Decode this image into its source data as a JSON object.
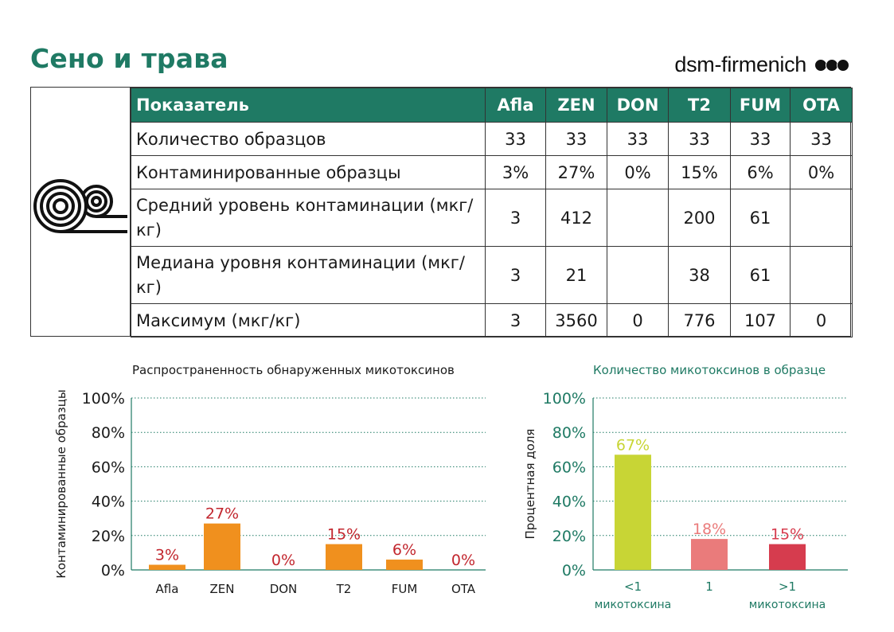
{
  "page": {
    "title": "Сено и трава",
    "brand": "dsm-firmenich",
    "icon": "hay-bale-icon"
  },
  "table": {
    "headers": [
      "Показатель",
      "Afla",
      "ZEN",
      "DON",
      "T2",
      "FUM",
      "OTA"
    ],
    "rows": [
      {
        "label": "Количество образцов",
        "values": [
          "33",
          "33",
          "33",
          "33",
          "33",
          "33"
        ]
      },
      {
        "label": "Контаминированные образцы",
        "values": [
          "3%",
          "27%",
          "0%",
          "15%",
          "6%",
          "0%"
        ]
      },
      {
        "label": "Средний уровень контаминации (мкг/кг)",
        "values": [
          "3",
          "412",
          "",
          "200",
          "61",
          ""
        ]
      },
      {
        "label": "Медиана уровня контаминации (мкг/кг)",
        "values": [
          "3",
          "21",
          "",
          "38",
          "61",
          ""
        ]
      },
      {
        "label": "Максимум (мкг/кг)",
        "values": [
          "3",
          "3560",
          "0",
          "776",
          "107",
          "0"
        ]
      }
    ]
  },
  "colors": {
    "brand_green": "#1f7a64",
    "bar_orange": "#f0901e",
    "label_red": "#c2262e",
    "bar_lime": "#c8d535",
    "bar_pink": "#ea7b7b",
    "bar_red": "#d63c4e",
    "grid": "#1f7a64"
  },
  "chart_data": [
    {
      "type": "bar",
      "title": "Распространенность обнаруженных микотоксинов",
      "ylabel": "Контаминированные образцы",
      "xlabel": "",
      "categories": [
        "Afla",
        "ZEN",
        "DON",
        "T2",
        "FUM",
        "OTA"
      ],
      "values": [
        3,
        27,
        0,
        15,
        6,
        0
      ],
      "value_labels": [
        "3%",
        "27%",
        "0%",
        "15%",
        "6%",
        "0%"
      ],
      "ylim": [
        0,
        100
      ],
      "yticks": [
        "0%",
        "20%",
        "40%",
        "60%",
        "80%",
        "100%"
      ],
      "grid": true
    },
    {
      "type": "bar",
      "title": "Количество микотоксинов в образце",
      "ylabel": "Процентная доля",
      "xlabel": "",
      "categories": [
        "<1 микотоксина",
        "1",
        ">1 микотоксина"
      ],
      "category_lines": [
        [
          "<1",
          "микотоксина"
        ],
        [
          "1",
          ""
        ],
        [
          ">1",
          "микотоксина"
        ]
      ],
      "values": [
        67,
        18,
        15
      ],
      "value_labels": [
        "67%",
        "18%",
        "15%"
      ],
      "ylim": [
        0,
        100
      ],
      "yticks": [
        "0%",
        "20%",
        "40%",
        "60%",
        "80%",
        "100%"
      ],
      "grid": true
    }
  ]
}
